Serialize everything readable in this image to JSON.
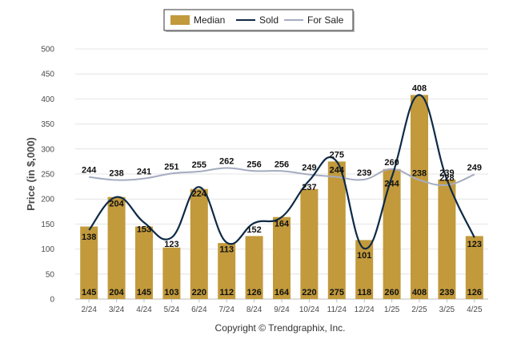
{
  "chart_data": {
    "type": "bar",
    "ylabel": "Price (in $,000)",
    "ylim": [
      0,
      500
    ],
    "yticks": [
      0,
      50,
      100,
      150,
      200,
      250,
      300,
      350,
      400,
      450,
      500
    ],
    "grid": true,
    "legend_position": "top-center",
    "categories": [
      "2/24",
      "3/24",
      "4/24",
      "5/24",
      "6/24",
      "7/24",
      "8/24",
      "9/24",
      "10/24",
      "11/24",
      "12/24",
      "1/25",
      "2/25",
      "3/25",
      "4/25"
    ],
    "series": [
      {
        "name": "Median",
        "kind": "bar",
        "color": "#c29a3c",
        "values": [
          145,
          204,
          145,
          103,
          220,
          112,
          126,
          164,
          220,
          275,
          118,
          260,
          408,
          239,
          126
        ]
      },
      {
        "name": "Sold",
        "kind": "line",
        "color": "#0e2a47",
        "values": [
          138,
          204,
          153,
          123,
          224,
          113,
          152,
          164,
          237,
          275,
          101,
          244,
          408,
          239,
          123
        ]
      },
      {
        "name": "For Sale",
        "kind": "line",
        "color": "#a5acc0",
        "values": [
          244,
          238,
          241,
          251,
          255,
          262,
          256,
          256,
          249,
          244,
          239,
          260,
          238,
          228,
          249
        ]
      }
    ]
  },
  "footer": {
    "copyright": "Copyright © Trendgraphix, Inc."
  }
}
